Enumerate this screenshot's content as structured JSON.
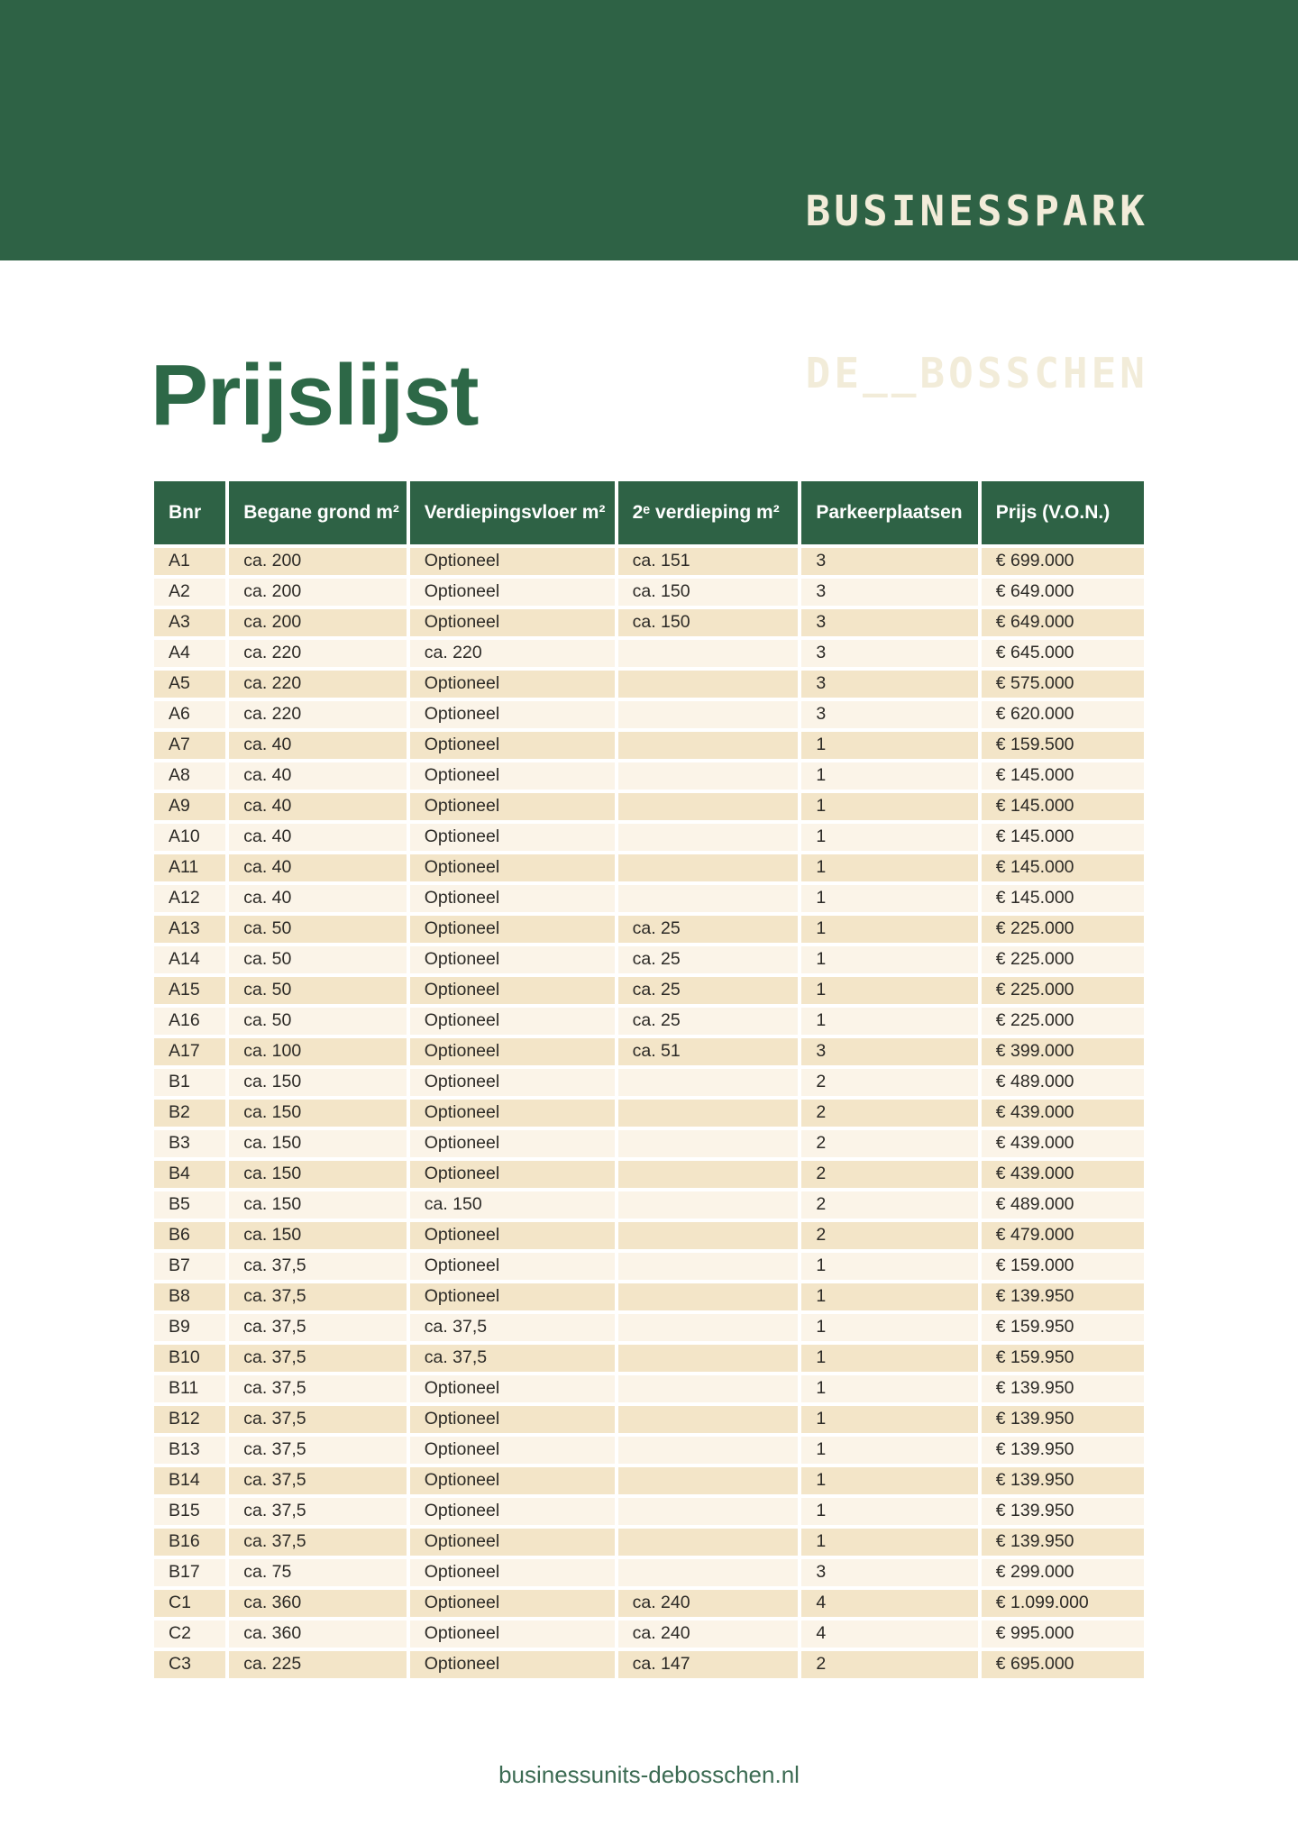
{
  "logo": {
    "line1": "BUSINESSPARK",
    "line2": "DE__BOSSCHEN"
  },
  "page": {
    "title": "Prijslijst",
    "footer": "businessunits-debosschen.nl"
  },
  "table": {
    "columns": [
      "Bnr",
      "Begane grond m²",
      "Verdiepingsvloer m²",
      "2ᵉ verdieping m²",
      "Parkeerplaatsen",
      "Prijs (V.O.N.)"
    ],
    "column_keys": [
      "bnr",
      "begane-grond",
      "verdiepingsvloer",
      "tweede-verdieping",
      "parkeerplaatsen",
      "prijs"
    ],
    "rows": [
      [
        "A1",
        "ca. 200",
        "Optioneel",
        "ca. 151",
        "3",
        "€ 699.000"
      ],
      [
        "A2",
        "ca. 200",
        "Optioneel",
        "ca. 150",
        "3",
        "€ 649.000"
      ],
      [
        "A3",
        "ca. 200",
        "Optioneel",
        "ca. 150",
        "3",
        "€ 649.000"
      ],
      [
        "A4",
        "ca. 220",
        "ca. 220",
        "",
        "3",
        "€ 645.000"
      ],
      [
        "A5",
        "ca. 220",
        "Optioneel",
        "",
        "3",
        "€ 575.000"
      ],
      [
        "A6",
        "ca. 220",
        "Optioneel",
        "",
        "3",
        "€ 620.000"
      ],
      [
        "A7",
        "ca. 40",
        "Optioneel",
        "",
        "1",
        "€ 159.500"
      ],
      [
        "A8",
        "ca. 40",
        "Optioneel",
        "",
        "1",
        "€ 145.000"
      ],
      [
        "A9",
        "ca. 40",
        "Optioneel",
        "",
        "1",
        "€ 145.000"
      ],
      [
        "A10",
        "ca. 40",
        "Optioneel",
        "",
        "1",
        "€ 145.000"
      ],
      [
        "A11",
        "ca. 40",
        "Optioneel",
        "",
        "1",
        "€ 145.000"
      ],
      [
        "A12",
        "ca. 40",
        "Optioneel",
        "",
        "1",
        "€ 145.000"
      ],
      [
        "A13",
        "ca. 50",
        "Optioneel",
        "ca. 25",
        "1",
        "€ 225.000"
      ],
      [
        "A14",
        "ca. 50",
        "Optioneel",
        "ca. 25",
        "1",
        "€ 225.000"
      ],
      [
        "A15",
        "ca. 50",
        "Optioneel",
        "ca. 25",
        "1",
        "€ 225.000"
      ],
      [
        "A16",
        "ca. 50",
        "Optioneel",
        "ca. 25",
        "1",
        "€ 225.000"
      ],
      [
        "A17",
        "ca. 100",
        "Optioneel",
        "ca. 51",
        "3",
        "€ 399.000"
      ],
      [
        "B1",
        "ca. 150",
        "Optioneel",
        "",
        "2",
        "€ 489.000"
      ],
      [
        "B2",
        "ca. 150",
        "Optioneel",
        "",
        "2",
        "€ 439.000"
      ],
      [
        "B3",
        "ca. 150",
        "Optioneel",
        "",
        "2",
        "€ 439.000"
      ],
      [
        "B4",
        "ca. 150",
        "Optioneel",
        "",
        "2",
        "€ 439.000"
      ],
      [
        "B5",
        "ca. 150",
        "ca. 150",
        "",
        "2",
        "€ 489.000"
      ],
      [
        "B6",
        "ca. 150",
        "Optioneel",
        "",
        "2",
        "€ 479.000"
      ],
      [
        "B7",
        "ca. 37,5",
        "Optioneel",
        "",
        "1",
        "€ 159.000"
      ],
      [
        "B8",
        "ca. 37,5",
        "Optioneel",
        "",
        "1",
        "€ 139.950"
      ],
      [
        "B9",
        "ca. 37,5",
        "ca. 37,5",
        "",
        "1",
        "€ 159.950"
      ],
      [
        "B10",
        "ca. 37,5",
        "ca. 37,5",
        "",
        "1",
        "€ 159.950"
      ],
      [
        "B11",
        "ca. 37,5",
        "Optioneel",
        "",
        "1",
        "€ 139.950"
      ],
      [
        "B12",
        "ca. 37,5",
        "Optioneel",
        "",
        "1",
        "€ 139.950"
      ],
      [
        "B13",
        "ca. 37,5",
        "Optioneel",
        "",
        "1",
        "€ 139.950"
      ],
      [
        "B14",
        "ca. 37,5",
        "Optioneel",
        "",
        "1",
        "€ 139.950"
      ],
      [
        "B15",
        "ca. 37,5",
        "Optioneel",
        "",
        "1",
        "€ 139.950"
      ],
      [
        "B16",
        "ca. 37,5",
        "Optioneel",
        "",
        "1",
        "€ 139.950"
      ],
      [
        "B17",
        "ca. 75",
        "Optioneel",
        "",
        "3",
        "€ 299.000"
      ],
      [
        "C1",
        "ca. 360",
        "Optioneel",
        "ca. 240",
        "4",
        "€ 1.099.000"
      ],
      [
        "C2",
        "ca. 360",
        "Optioneel",
        "ca. 240",
        "4",
        "€ 995.000"
      ],
      [
        "C3",
        "ca. 225",
        "Optioneel",
        "ca. 147",
        "2",
        "€ 695.000"
      ]
    ]
  },
  "colors": {
    "brand_green": "#2e6245",
    "title_green": "#2d6847",
    "logo_cream": "#f2ecd9",
    "row_dark_beige": "#f3e5c8",
    "row_light_beige": "#fbf4e8",
    "body_text": "#2c2a26",
    "footer_green": "#3c6b53"
  }
}
